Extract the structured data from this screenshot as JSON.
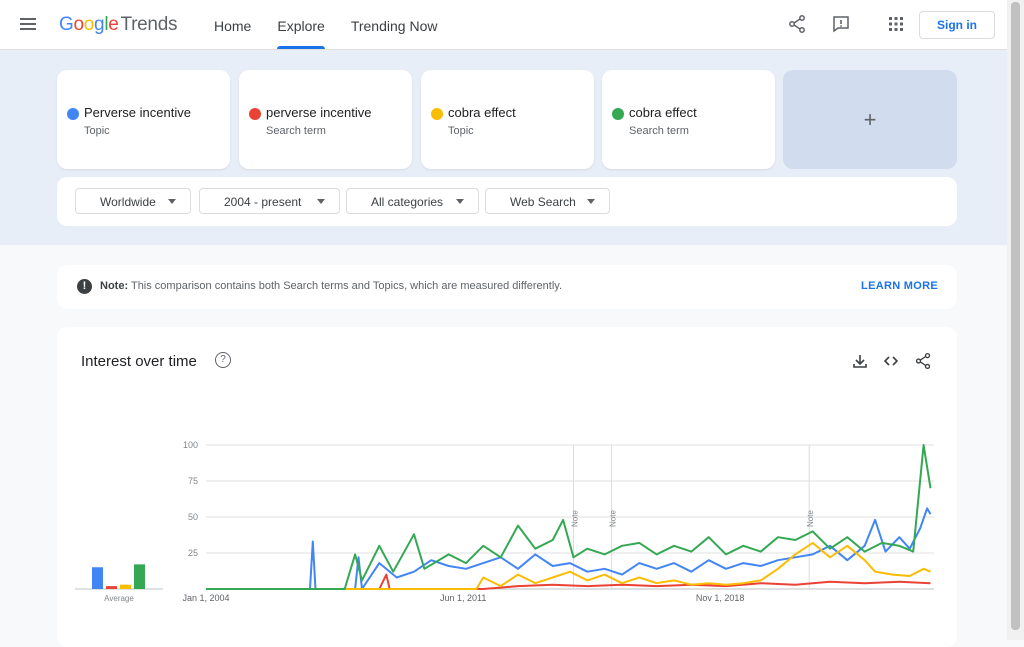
{
  "header": {
    "logo_google": "Google",
    "logo_trends": "Trends",
    "nav": [
      {
        "label": "Home",
        "active": false
      },
      {
        "label": "Explore",
        "active": true
      },
      {
        "label": "Trending Now",
        "active": false
      }
    ],
    "icons": [
      "share-icon",
      "feedback-icon",
      "apps-grid-icon"
    ],
    "sign_in": "Sign in"
  },
  "terms": [
    {
      "name": "Perverse incentive",
      "type": "Topic",
      "color": "#4285f4"
    },
    {
      "name": "perverse incentive",
      "type": "Search term",
      "color": "#ea4335"
    },
    {
      "name": "cobra effect",
      "type": "Topic",
      "color": "#fbbc04"
    },
    {
      "name": "cobra effect",
      "type": "Search term",
      "color": "#34a853"
    }
  ],
  "add_term": "+",
  "filters": {
    "region": "Worldwide",
    "time": "2004 - present",
    "category": "All categories",
    "search_type": "Web Search"
  },
  "note": {
    "label": "Note:",
    "text": "This comparison contains both Search terms and Topics, which are measured differently.",
    "link": "LEARN MORE"
  },
  "interest": {
    "title": "Interest over time",
    "help": "?",
    "icons": [
      "download-icon",
      "embed-icon",
      "share-icon"
    ]
  },
  "chart_data": {
    "type": "line",
    "title": "Interest over time",
    "ylim": [
      0,
      100
    ],
    "yticks": [
      100,
      75,
      50,
      25
    ],
    "xtick_labels": [
      "Jan 1, 2004",
      "Jun 1, 2011",
      "Nov 1, 2018"
    ],
    "notes": [
      {
        "label": "Note",
        "year": 2014.6
      },
      {
        "label": "Note",
        "year": 2015.7
      },
      {
        "label": "Note",
        "year": 2021.4
      }
    ],
    "average_label": "Average",
    "averages": [
      15,
      2,
      3,
      17
    ],
    "series": [
      {
        "color": "#4285f4",
        "points": [
          [
            2004,
            0
          ],
          [
            2007,
            0
          ],
          [
            2007.08,
            33
          ],
          [
            2007.16,
            0
          ],
          [
            2008.3,
            0
          ],
          [
            2008.4,
            22
          ],
          [
            2008.5,
            0
          ],
          [
            2009,
            18
          ],
          [
            2009.5,
            8
          ],
          [
            2010,
            12
          ],
          [
            2010.5,
            20
          ],
          [
            2011,
            16
          ],
          [
            2011.5,
            14
          ],
          [
            2012,
            18
          ],
          [
            2012.5,
            22
          ],
          [
            2013,
            14
          ],
          [
            2013.5,
            24
          ],
          [
            2014,
            16
          ],
          [
            2014.5,
            18
          ],
          [
            2015,
            12
          ],
          [
            2015.5,
            14
          ],
          [
            2016,
            10
          ],
          [
            2016.5,
            18
          ],
          [
            2017,
            14
          ],
          [
            2017.5,
            18
          ],
          [
            2018,
            12
          ],
          [
            2018.5,
            20
          ],
          [
            2019,
            14
          ],
          [
            2019.5,
            18
          ],
          [
            2020,
            16
          ],
          [
            2020.5,
            20
          ],
          [
            2021,
            22
          ],
          [
            2021.5,
            24
          ],
          [
            2022,
            30
          ],
          [
            2022.5,
            20
          ],
          [
            2023,
            30
          ],
          [
            2023.3,
            48
          ],
          [
            2023.6,
            26
          ],
          [
            2024,
            36
          ],
          [
            2024.3,
            28
          ],
          [
            2024.6,
            42
          ],
          [
            2024.8,
            56
          ],
          [
            2024.9,
            52
          ]
        ]
      },
      {
        "color": "#ea4335",
        "points": [
          [
            2004,
            0
          ],
          [
            2009,
            0
          ],
          [
            2009.2,
            10
          ],
          [
            2009.3,
            0
          ],
          [
            2012,
            0
          ],
          [
            2013,
            2
          ],
          [
            2014,
            3
          ],
          [
            2015,
            2
          ],
          [
            2016,
            3
          ],
          [
            2017,
            2
          ],
          [
            2018,
            3
          ],
          [
            2019,
            2
          ],
          [
            2020,
            4
          ],
          [
            2021,
            3
          ],
          [
            2022,
            5
          ],
          [
            2023,
            4
          ],
          [
            2024,
            5
          ],
          [
            2024.9,
            4
          ]
        ]
      },
      {
        "color": "#fbbc04",
        "points": [
          [
            2004,
            0
          ],
          [
            2011.8,
            0
          ],
          [
            2012,
            8
          ],
          [
            2012.5,
            2
          ],
          [
            2013,
            10
          ],
          [
            2013.5,
            4
          ],
          [
            2014,
            8
          ],
          [
            2014.5,
            12
          ],
          [
            2015,
            6
          ],
          [
            2015.5,
            10
          ],
          [
            2016,
            4
          ],
          [
            2016.5,
            8
          ],
          [
            2017,
            4
          ],
          [
            2017.5,
            6
          ],
          [
            2018,
            3
          ],
          [
            2018.5,
            4
          ],
          [
            2019,
            3
          ],
          [
            2019.5,
            4
          ],
          [
            2020,
            6
          ],
          [
            2020.5,
            14
          ],
          [
            2021,
            24
          ],
          [
            2021.5,
            32
          ],
          [
            2022,
            22
          ],
          [
            2022.5,
            30
          ],
          [
            2023,
            20
          ],
          [
            2023.3,
            12
          ],
          [
            2023.8,
            10
          ],
          [
            2024.3,
            9
          ],
          [
            2024.7,
            14
          ],
          [
            2024.9,
            12
          ]
        ]
      },
      {
        "color": "#34a853",
        "points": [
          [
            2004,
            0
          ],
          [
            2008,
            0
          ],
          [
            2008.3,
            24
          ],
          [
            2008.5,
            6
          ],
          [
            2009,
            30
          ],
          [
            2009.4,
            12
          ],
          [
            2010,
            38
          ],
          [
            2010.3,
            14
          ],
          [
            2011,
            24
          ],
          [
            2011.5,
            18
          ],
          [
            2012,
            30
          ],
          [
            2012.5,
            22
          ],
          [
            2013,
            44
          ],
          [
            2013.5,
            28
          ],
          [
            2014,
            34
          ],
          [
            2014.3,
            48
          ],
          [
            2014.6,
            22
          ],
          [
            2015,
            28
          ],
          [
            2015.5,
            24
          ],
          [
            2016,
            30
          ],
          [
            2016.5,
            32
          ],
          [
            2017,
            24
          ],
          [
            2017.5,
            30
          ],
          [
            2018,
            26
          ],
          [
            2018.5,
            36
          ],
          [
            2019,
            24
          ],
          [
            2019.5,
            30
          ],
          [
            2020,
            26
          ],
          [
            2020.5,
            36
          ],
          [
            2021,
            34
          ],
          [
            2021.5,
            40
          ],
          [
            2022,
            28
          ],
          [
            2022.5,
            36
          ],
          [
            2023,
            26
          ],
          [
            2023.5,
            32
          ],
          [
            2024,
            30
          ],
          [
            2024.4,
            26
          ],
          [
            2024.7,
            100
          ],
          [
            2024.9,
            70
          ]
        ]
      }
    ]
  }
}
